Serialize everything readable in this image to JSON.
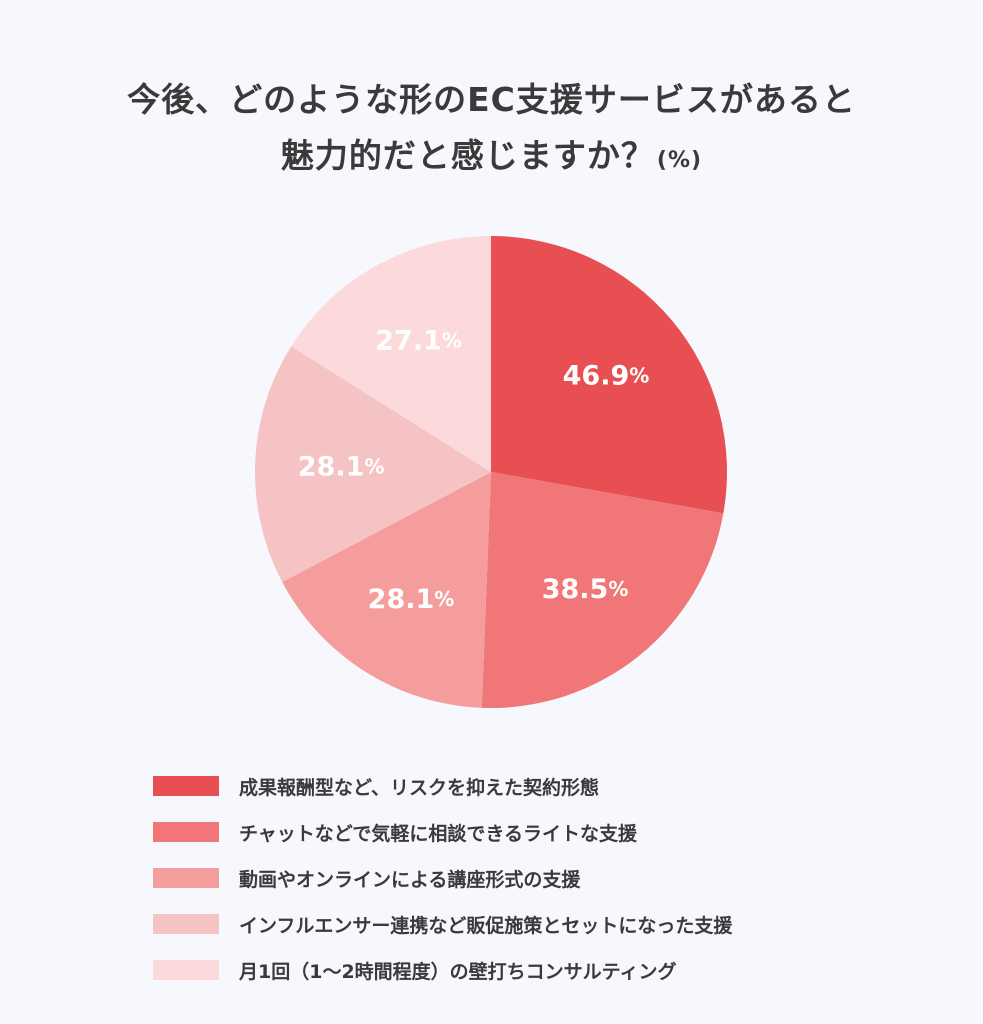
{
  "title_line1": "今後、どのような形のEC支援サービスがあると",
  "title_line2": "魅力的だと感じますか？",
  "title_unit": "(%)",
  "colors": [
    "#e84f52",
    "#f07677",
    "#f59d9c",
    "#f6c3c4",
    "#fcd9da"
  ],
  "chart_data": {
    "type": "pie",
    "categories": [
      "成果報酬型など、リスクを抑えた契約形態",
      "チャットなどで気軽に相談できるライトな支援",
      "動画やオンラインによる講座形式の支援",
      "インフルエンサー連携など販促施策とセットになった支援",
      "月1回（1〜2時間程度）の壁打ちコンサルティング"
    ],
    "values": [
      46.9,
      38.5,
      28.1,
      28.1,
      27.1
    ],
    "value_labels": [
      "46.9",
      "38.5",
      "28.1",
      "28.1",
      "27.1"
    ],
    "value_suffix": "%",
    "title": "今後、どのような形のEC支援サービスがあると魅力的だと感じますか？(%)"
  }
}
